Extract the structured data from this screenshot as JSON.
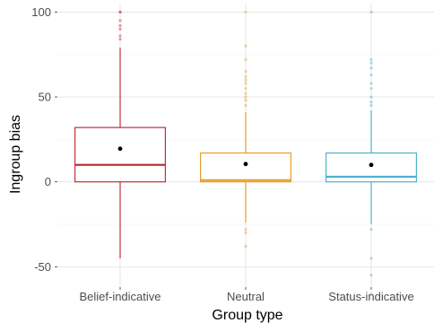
{
  "chart_data": {
    "type": "box",
    "title": "",
    "xlabel": "Group type",
    "ylabel": "Ingroup bias",
    "ylim": [
      -62,
      105
    ],
    "yticks": [
      -50,
      0,
      50,
      100
    ],
    "grid": true,
    "legend": "none",
    "categories": [
      "Belief-indicative",
      "Neutral",
      "Status-indicative"
    ],
    "colors": [
      "#c0303a",
      "#e69f2c",
      "#4fb2cc"
    ],
    "boxes": [
      {
        "category": "Belief-indicative",
        "q1": 0,
        "median": 10,
        "q3": 32,
        "whisker_low": -45,
        "whisker_high": 79,
        "mean": 19.5,
        "outliers": [
          100,
          100,
          95,
          92,
          90,
          86,
          84
        ]
      },
      {
        "category": "Neutral",
        "q1": 0,
        "median": 1,
        "q3": 17,
        "whisker_low": -24,
        "whisker_high": 41,
        "mean": 10.5,
        "outliers": [
          100,
          80,
          72,
          65,
          62,
          60,
          58,
          55,
          52,
          50,
          48,
          45,
          -28,
          -30,
          -38
        ]
      },
      {
        "category": "Status-indicative",
        "q1": 0,
        "median": 3,
        "q3": 17,
        "whisker_low": -25,
        "whisker_high": 42,
        "mean": 10,
        "outliers": [
          100,
          72,
          70,
          67,
          63,
          58,
          55,
          50,
          47,
          45,
          -28,
          -45,
          -55,
          -66
        ]
      }
    ]
  }
}
